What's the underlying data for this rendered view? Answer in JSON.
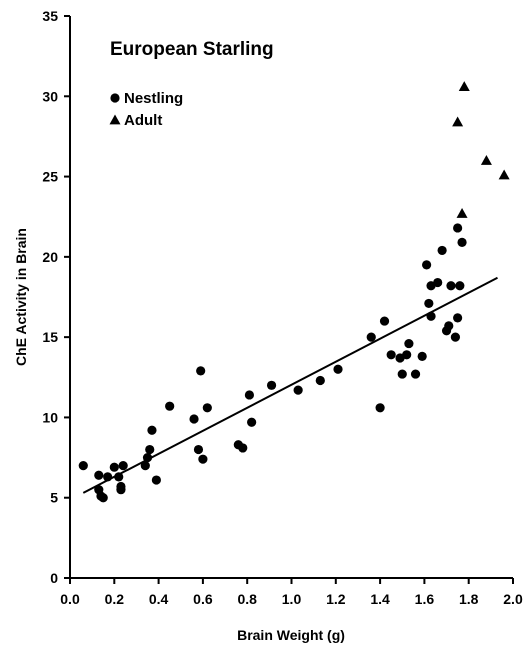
{
  "chart_data": {
    "type": "scatter",
    "title": "European Starling",
    "xlabel": "Brain Weight (g)",
    "ylabel": "ChE Activity in Brain",
    "xlim": [
      0.0,
      2.0
    ],
    "ylim": [
      0,
      35
    ],
    "x_ticks": [
      "0.0",
      "0.2",
      "0.4",
      "0.6",
      "0.8",
      "1.0",
      "1.2",
      "1.4",
      "1.6",
      "1.8",
      "2.0"
    ],
    "y_ticks": [
      "0",
      "5",
      "10",
      "15",
      "20",
      "25",
      "30",
      "35"
    ],
    "legend_position": "top-left",
    "series": [
      {
        "name": "Nestling",
        "marker": "circle",
        "points": [
          [
            0.06,
            7.0
          ],
          [
            0.13,
            5.5
          ],
          [
            0.13,
            6.4
          ],
          [
            0.14,
            5.1
          ],
          [
            0.15,
            5.0
          ],
          [
            0.17,
            6.3
          ],
          [
            0.2,
            6.9
          ],
          [
            0.22,
            6.3
          ],
          [
            0.23,
            5.5
          ],
          [
            0.23,
            5.7
          ],
          [
            0.24,
            7.0
          ],
          [
            0.34,
            7.0
          ],
          [
            0.35,
            7.5
          ],
          [
            0.36,
            8.0
          ],
          [
            0.37,
            9.2
          ],
          [
            0.39,
            6.1
          ],
          [
            0.45,
            10.7
          ],
          [
            0.56,
            9.9
          ],
          [
            0.58,
            8.0
          ],
          [
            0.59,
            12.9
          ],
          [
            0.6,
            7.4
          ],
          [
            0.62,
            10.6
          ],
          [
            0.76,
            8.3
          ],
          [
            0.78,
            8.1
          ],
          [
            0.81,
            11.4
          ],
          [
            0.82,
            9.7
          ],
          [
            0.91,
            12.0
          ],
          [
            1.03,
            11.7
          ],
          [
            1.13,
            12.3
          ],
          [
            1.21,
            13.0
          ],
          [
            1.36,
            15.0
          ],
          [
            1.4,
            10.6
          ],
          [
            1.42,
            16.0
          ],
          [
            1.45,
            13.9
          ],
          [
            1.49,
            13.7
          ],
          [
            1.5,
            12.7
          ],
          [
            1.52,
            13.9
          ],
          [
            1.53,
            14.6
          ],
          [
            1.56,
            12.7
          ],
          [
            1.59,
            13.8
          ],
          [
            1.61,
            19.5
          ],
          [
            1.62,
            17.1
          ],
          [
            1.63,
            18.2
          ],
          [
            1.63,
            16.3
          ],
          [
            1.66,
            18.4
          ],
          [
            1.68,
            20.4
          ],
          [
            1.7,
            15.4
          ],
          [
            1.71,
            15.7
          ],
          [
            1.72,
            18.2
          ],
          [
            1.74,
            15.0
          ],
          [
            1.75,
            16.2
          ],
          [
            1.75,
            21.8
          ],
          [
            1.76,
            18.2
          ],
          [
            1.77,
            20.9
          ]
        ]
      },
      {
        "name": "Adult",
        "marker": "triangle",
        "points": [
          [
            1.75,
            28.4
          ],
          [
            1.77,
            22.7
          ],
          [
            1.78,
            30.6
          ],
          [
            1.88,
            26.0
          ],
          [
            1.96,
            25.1
          ]
        ]
      }
    ],
    "regression_line": {
      "x": [
        0.06,
        1.93
      ],
      "y": [
        5.3,
        18.7
      ]
    },
    "grid": false
  }
}
